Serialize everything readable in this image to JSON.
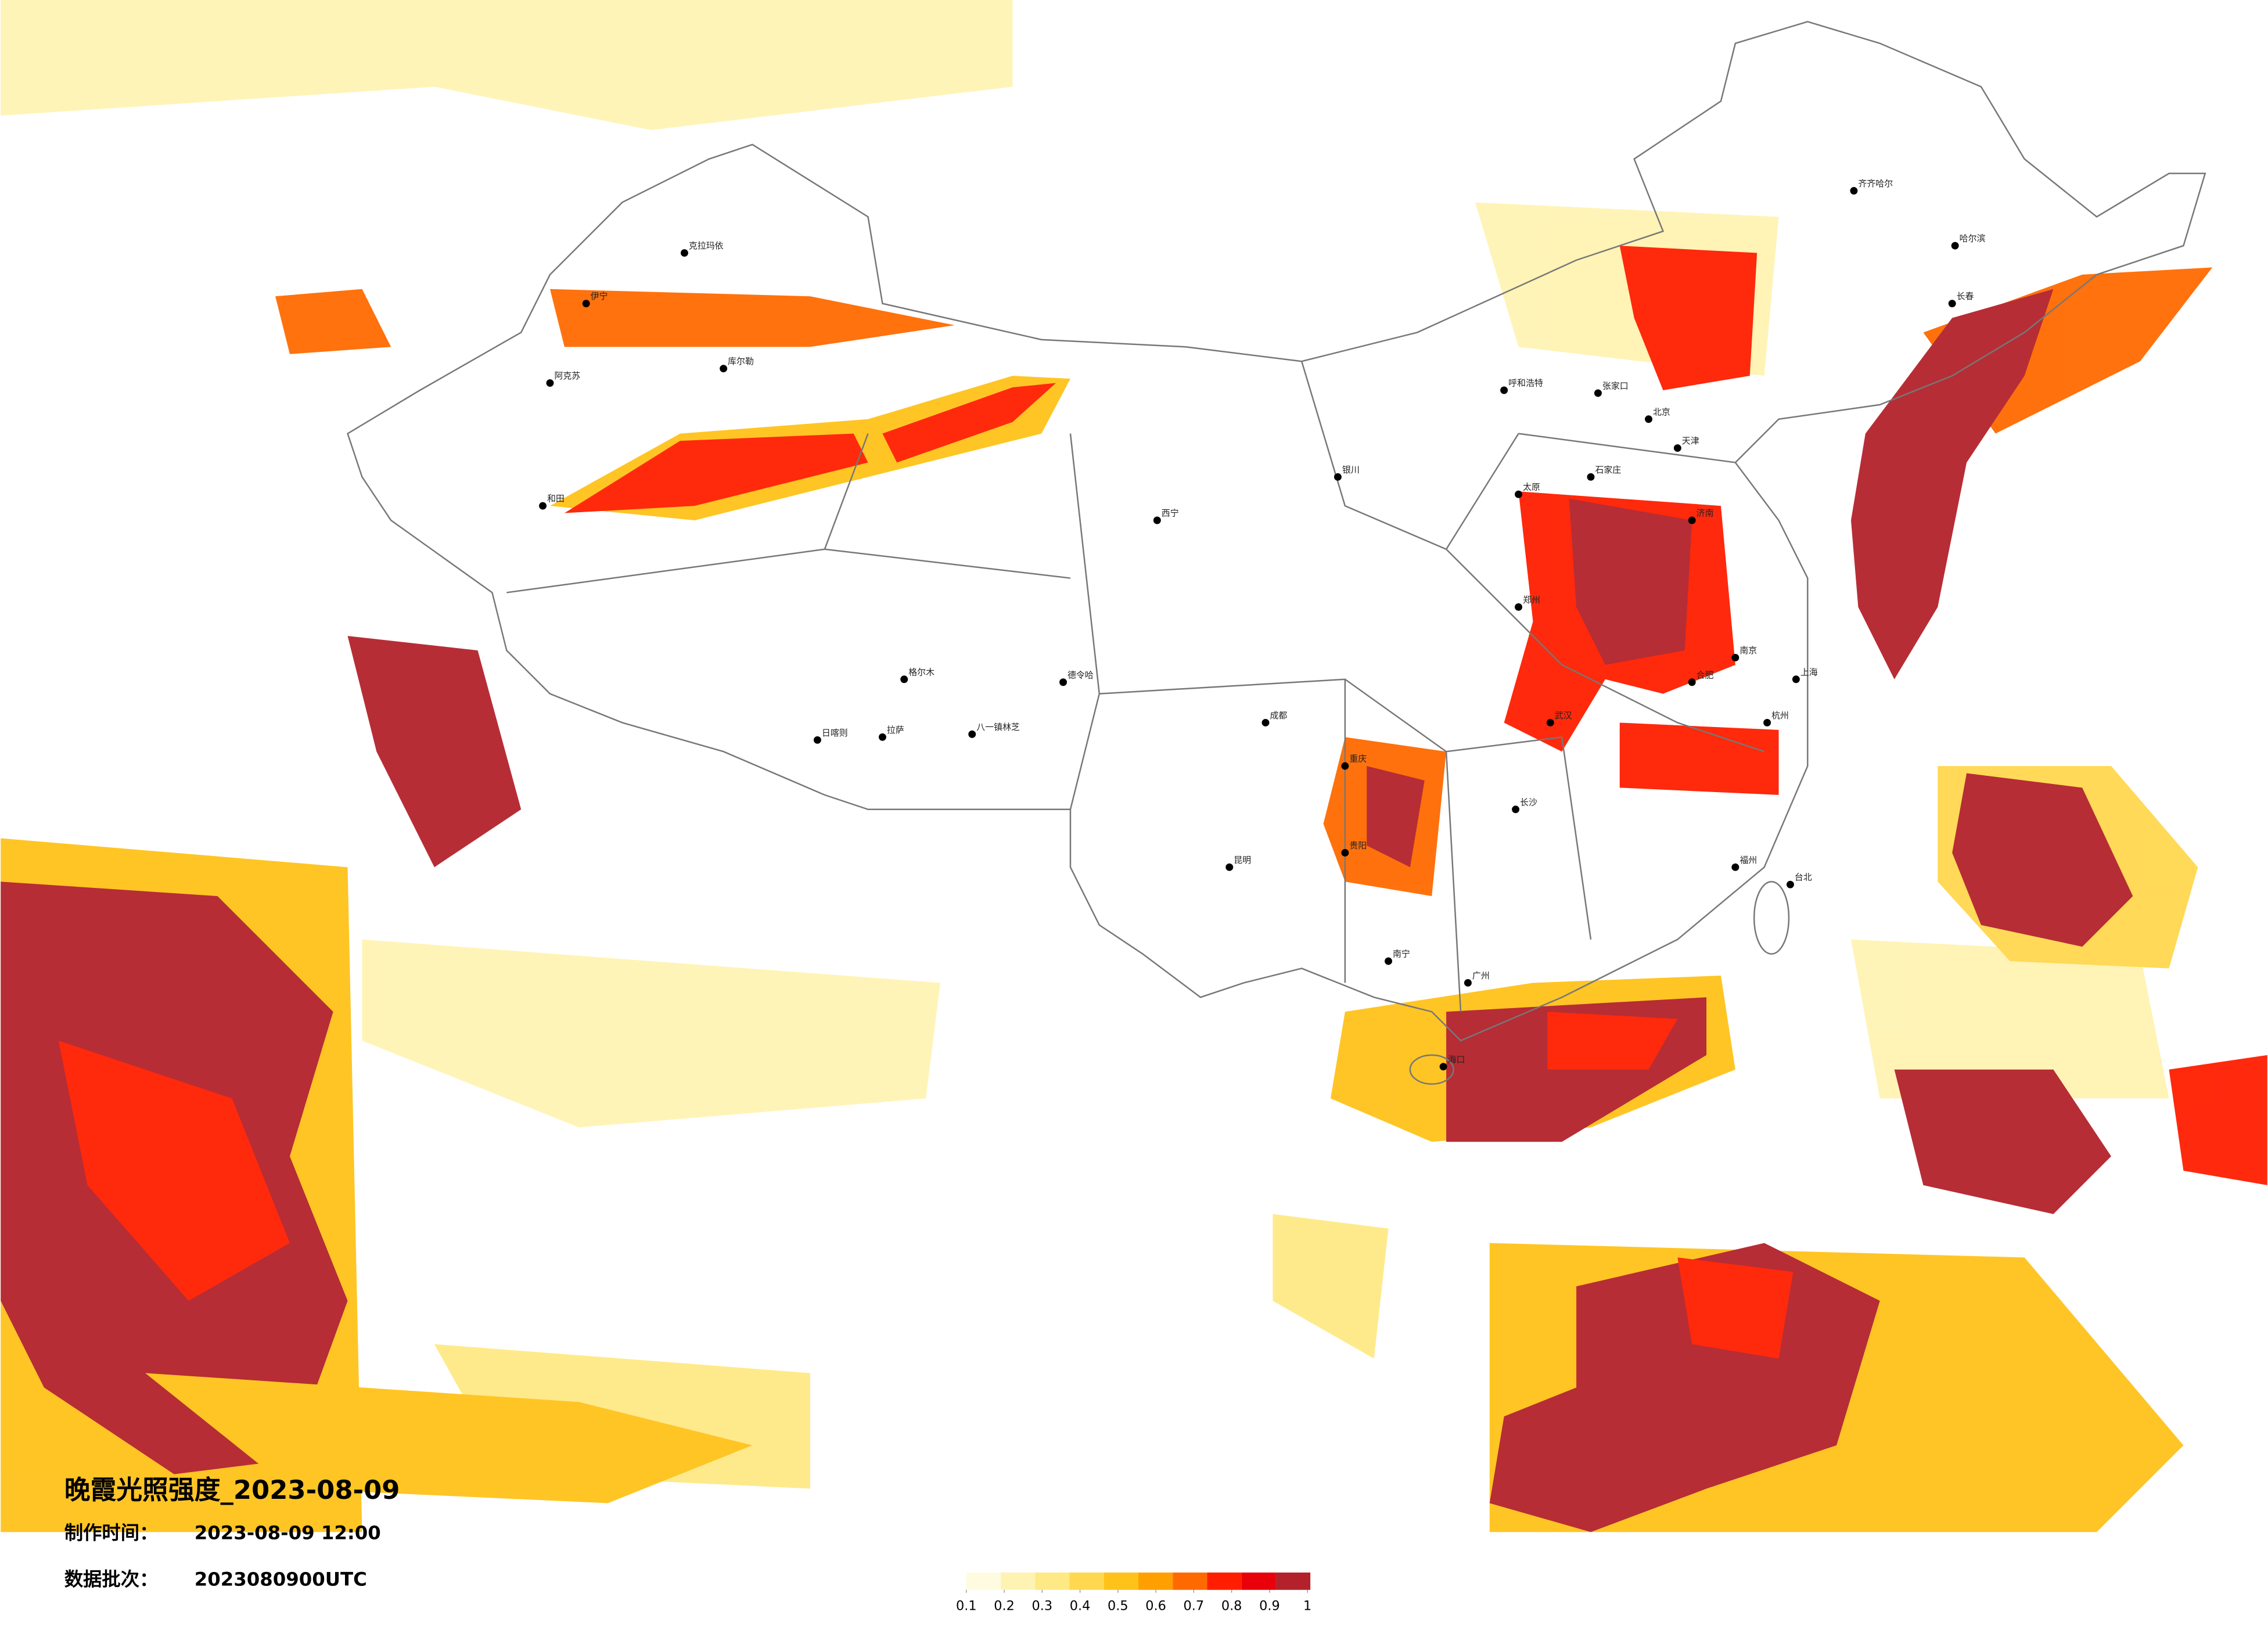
{
  "header": {
    "title": "晚霞光照强度_2023-08-09",
    "made_label": "制作时间：",
    "made_time": "2023-08-09 12:00",
    "batch_label": "数据批次：",
    "batch": "2023080900UTC"
  },
  "colorbar": {
    "colors": [
      "#fffbe0",
      "#fff3b3",
      "#ffe985",
      "#ffd84f",
      "#ffc21a",
      "#ffa000",
      "#ff6a00",
      "#ff1e00",
      "#e8000b",
      "#b3222b"
    ],
    "ticks": [
      0.1,
      0.2,
      0.3,
      0.4,
      0.5,
      0.6,
      0.7,
      0.8,
      0.9,
      1
    ]
  },
  "cities": [
    "齐齐哈尔",
    "哈尔滨",
    "长春",
    "北京",
    "天津",
    "石家庄",
    "呼和浩特",
    "银川",
    "西宁",
    "拉萨",
    "日喀则",
    "八一镇林芝",
    "格尔木",
    "和田",
    "伊宁",
    "克拉玛依",
    "库尔勒",
    "阿克苏",
    "德令哈",
    "张家口",
    "长沙",
    "重庆",
    "昆明",
    "贵阳",
    "南宁",
    "福州",
    "杭州",
    "上海",
    "南京",
    "合肥",
    "郑州",
    "济南",
    "太原",
    "武汉",
    "成都",
    "广州",
    "海口",
    "台北"
  ]
}
